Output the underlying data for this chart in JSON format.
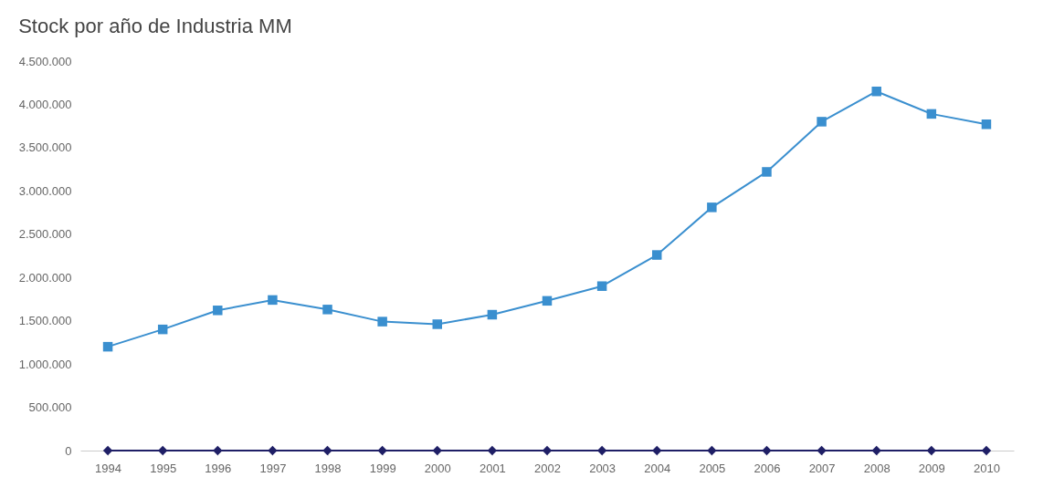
{
  "chart_data": {
    "type": "line",
    "title": "Stock por año de Industria MM",
    "categories": [
      "1994",
      "1995",
      "1996",
      "1997",
      "1998",
      "1999",
      "2000",
      "2001",
      "2002",
      "2003",
      "2004",
      "2005",
      "2006",
      "2007",
      "2008",
      "2009",
      "2010"
    ],
    "series": [
      {
        "color": "#3a8fcf",
        "marker": "square",
        "values": [
          1200000,
          1400000,
          1620000,
          1740000,
          1630000,
          1490000,
          1460000,
          1570000,
          1730000,
          1900000,
          2260000,
          2810000,
          3220000,
          3800000,
          4150000,
          3890000,
          3770000
        ]
      },
      {
        "color": "#1f1f66",
        "marker": "diamond",
        "values": [
          0,
          0,
          0,
          0,
          0,
          0,
          0,
          0,
          0,
          0,
          0,
          0,
          0,
          0,
          0,
          0,
          0
        ]
      }
    ],
    "ylim": [
      0,
      4500000
    ],
    "yticks": [
      {
        "value": 0,
        "label": "0"
      },
      {
        "value": 500000,
        "label": "500.000"
      },
      {
        "value": 1000000,
        "label": "1.000.000"
      },
      {
        "value": 1500000,
        "label": "1.500.000"
      },
      {
        "value": 2000000,
        "label": "2.000.000"
      },
      {
        "value": 2500000,
        "label": "2.500.000"
      },
      {
        "value": 3000000,
        "label": "3.000.000"
      },
      {
        "value": 3500000,
        "label": "3.500.000"
      },
      {
        "value": 4000000,
        "label": "4.000.000"
      },
      {
        "value": 4500000,
        "label": "4.500.000"
      }
    ],
    "grid": false,
    "line_style": "solid"
  }
}
